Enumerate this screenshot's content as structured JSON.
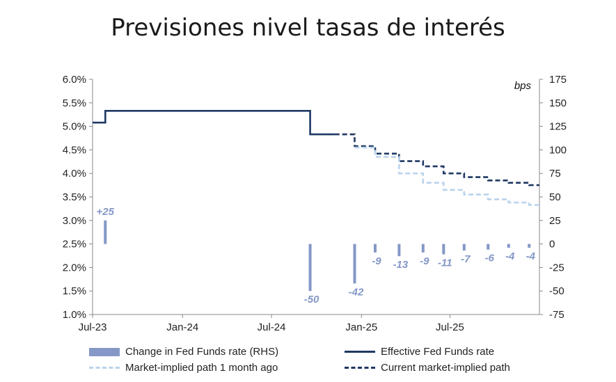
{
  "title": "Previsiones nivel tasas de interés",
  "chart_data": {
    "type": "line",
    "left_axis": {
      "ylim": [
        1.0,
        6.0
      ],
      "ticks": [
        "1.0%",
        "1.5%",
        "2.0%",
        "2.5%",
        "3.0%",
        "3.5%",
        "4.0%",
        "4.5%",
        "5.0%",
        "5.5%",
        "6.0%"
      ]
    },
    "right_axis": {
      "unit_label": "bps",
      "ylim": [
        -75,
        175
      ],
      "ticks": [
        "-75",
        "-50",
        "-25",
        "0",
        "25",
        "50",
        "75",
        "100",
        "125",
        "150",
        "175"
      ]
    },
    "x_ticks": [
      "Jul-23",
      "Jan-24",
      "Jul-24",
      "Jan-25",
      "Jul-25"
    ],
    "series": [
      {
        "name": "Effective Fed Funds rate",
        "color": "#1f3864",
        "style": "solid",
        "x": [
          "2023-07-01",
          "2023-07-27",
          "2023-07-27",
          "2024-09-18",
          "2024-09-18",
          "2024-11-07"
        ],
        "y": [
          5.08,
          5.08,
          5.33,
          5.33,
          4.83,
          4.83
        ]
      },
      {
        "name": "Current market-implied path",
        "color": "#1f3864",
        "style": "dashed",
        "x": [
          "2024-11-07",
          "2024-12-18",
          "2024-12-18",
          "2025-01-29",
          "2025-01-29",
          "2025-03-19",
          "2025-03-19",
          "2025-05-07",
          "2025-05-07",
          "2025-06-18",
          "2025-06-18",
          "2025-07-30",
          "2025-07-30",
          "2025-09-17",
          "2025-09-17",
          "2025-10-29",
          "2025-10-29",
          "2025-12-10",
          "2025-12-10",
          "2025-12-31"
        ],
        "y": [
          4.83,
          4.83,
          4.58,
          4.58,
          4.42,
          4.42,
          4.26,
          4.26,
          4.15,
          4.15,
          4.0,
          4.0,
          3.92,
          3.92,
          3.85,
          3.85,
          3.8,
          3.8,
          3.75,
          3.75
        ]
      },
      {
        "name": "Market-implied path 1 month ago",
        "color": "#b9d3ec",
        "style": "dashed",
        "x": [
          "2024-12-18",
          "2025-01-29",
          "2025-01-29",
          "2025-03-19",
          "2025-03-19",
          "2025-05-07",
          "2025-05-07",
          "2025-06-18",
          "2025-06-18",
          "2025-07-30",
          "2025-07-30",
          "2025-09-17",
          "2025-09-17",
          "2025-10-29",
          "2025-10-29",
          "2025-12-10",
          "2025-12-10",
          "2025-12-31"
        ],
        "y": [
          4.55,
          4.55,
          4.35,
          4.35,
          4.0,
          4.0,
          3.8,
          3.8,
          3.65,
          3.65,
          3.55,
          3.55,
          3.45,
          3.45,
          3.38,
          3.38,
          3.33,
          3.33
        ]
      }
    ],
    "bars": {
      "name": "Change in Fed Funds rate (RHS)",
      "color": "#8497c7",
      "axis": "right",
      "x": [
        "2023-07-27",
        "2024-09-18",
        "2024-12-18",
        "2025-01-29",
        "2025-03-19",
        "2025-05-07",
        "2025-06-18",
        "2025-07-30",
        "2025-09-17",
        "2025-10-29",
        "2025-12-10"
      ],
      "values": [
        25,
        -50,
        -42,
        -9,
        -13,
        -9,
        -11,
        -7,
        -6,
        -4,
        -4
      ],
      "labels": [
        "+25",
        "-50",
        "-42",
        "-9",
        "-13",
        "-9",
        "-11",
        "-7",
        "-6",
        "-4",
        "-4"
      ]
    },
    "legend": [
      {
        "label": "Change in Fed Funds rate (RHS)",
        "kind": "bar",
        "color": "#8497c7"
      },
      {
        "label": "Effective Fed Funds rate",
        "kind": "solid",
        "color": "#1f3864"
      },
      {
        "label": "Market-implied path 1 month ago",
        "kind": "dashed",
        "color": "#b9d3ec"
      },
      {
        "label": "Current market-implied path",
        "kind": "dashed",
        "color": "#1f3864"
      }
    ],
    "legend_position": "bottom"
  }
}
